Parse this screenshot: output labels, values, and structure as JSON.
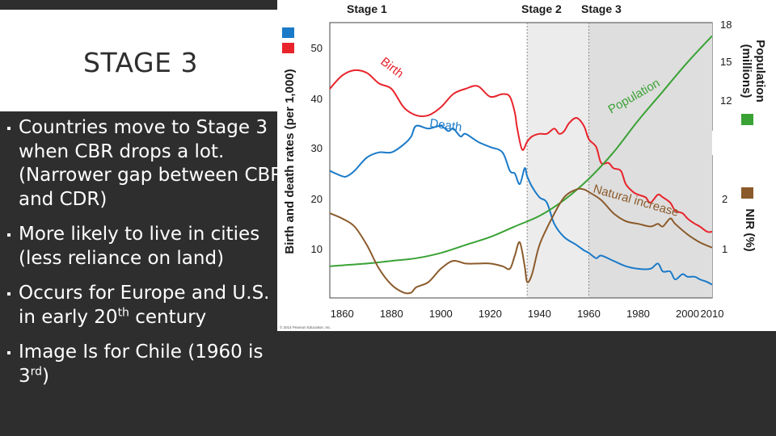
{
  "slide": {
    "title": "STAGE 3",
    "bullets": [
      {
        "main": "Countries move to Stage 3 when CBR drops a lot. (Narrower gap between CBR and CDR)"
      },
      {
        "main": "More likely to live in cities (less reliance on land)"
      },
      {
        "main": "Occurs for Europe and U.S. in early 20",
        "sup": "th",
        "after": " century"
      },
      {
        "main": "Image Is for Chile (1960 is 3",
        "sup": "rd",
        "after": ")"
      }
    ]
  },
  "chart_data": {
    "type": "line",
    "stages": [
      {
        "label": "Stage 1",
        "from": 1855,
        "to": 1935
      },
      {
        "label": "Stage 2",
        "from": 1935,
        "to": 1960
      },
      {
        "label": "Stage 3",
        "from": 1960,
        "to": 2010
      }
    ],
    "x_ticks": [
      "1860",
      "1880",
      "1900",
      "1920",
      "1940",
      "1960",
      "1980",
      "2000",
      "2010"
    ],
    "xlim": [
      1855,
      2010
    ],
    "y_left": {
      "label": "Birth and death rates (per 1,000)",
      "ticks": [
        "10",
        "20",
        "30",
        "40",
        "50"
      ],
      "ylim": [
        3,
        55
      ]
    },
    "y_right_top": {
      "label": "Population (millions)",
      "ticks": [
        "12",
        "15",
        "18"
      ]
    },
    "y_right_bottom": {
      "label": "NIR (%)",
      "ticks": [
        "1",
        "2"
      ]
    },
    "legend_colors": {
      "death": "#1a7ac8",
      "birth": "#e8242b",
      "population": "#3aa235",
      "nir": "#8b5a2b"
    },
    "series": [
      {
        "name": "Birth",
        "color": "#e8242b",
        "x": [
          1855,
          1860,
          1865,
          1870,
          1875,
          1880,
          1885,
          1890,
          1895,
          1900,
          1905,
          1910,
          1915,
          1920,
          1925,
          1928,
          1930,
          1931,
          1933,
          1935,
          1937,
          1940,
          1943,
          1946,
          1948,
          1950,
          1952,
          1955,
          1958,
          1960,
          1963,
          1965,
          1968,
          1970,
          1973,
          1975,
          1978,
          1980,
          1983,
          1985,
          1988,
          1990,
          1993,
          1995,
          1998,
          2000,
          2003,
          2005,
          2008,
          2010
        ],
        "values": [
          42.5,
          45,
          46,
          45.5,
          43.5,
          42.5,
          39,
          37.5,
          37.5,
          39,
          41.5,
          42.5,
          43,
          41,
          41.5,
          41,
          38,
          35,
          31,
          32.5,
          33.5,
          34,
          34,
          35,
          34,
          34.5,
          36,
          37,
          35.5,
          33,
          31.5,
          28.5,
          28.5,
          27.5,
          27,
          24.5,
          23,
          22.5,
          22,
          21,
          22.5,
          22,
          21,
          19.5,
          19,
          18,
          17,
          16.5,
          15.5,
          15.5
        ]
      },
      {
        "name": "Death",
        "color": "#1a7ac8",
        "x": [
          1855,
          1860,
          1862,
          1865,
          1870,
          1875,
          1880,
          1885,
          1888,
          1890,
          1895,
          1900,
          1903,
          1905,
          1908,
          1910,
          1915,
          1920,
          1925,
          1928,
          1930,
          1932,
          1934,
          1935,
          1937,
          1940,
          1943,
          1946,
          1950,
          1955,
          1958,
          1960,
          1963,
          1965,
          1970,
          1975,
          1980,
          1985,
          1988,
          1990,
          1993,
          1995,
          1998,
          2000,
          2003,
          2005,
          2008,
          2010
        ],
        "values": [
          27,
          26,
          26,
          27,
          29.5,
          30.5,
          30.5,
          32,
          33.5,
          35.5,
          35,
          35.5,
          34.5,
          35,
          33.5,
          34,
          32.5,
          31.5,
          30.5,
          27,
          26.5,
          24.5,
          27.5,
          26,
          24,
          22,
          21,
          17,
          14.5,
          13,
          12,
          11.5,
          10.5,
          11,
          10,
          9,
          8.5,
          8.5,
          9.5,
          8,
          8,
          6.5,
          7.5,
          7,
          7,
          6.5,
          6,
          5.5
        ]
      },
      {
        "name": "Population",
        "color": "#3aa235",
        "x": [
          1855,
          1870,
          1880,
          1890,
          1900,
          1910,
          1920,
          1930,
          1940,
          1950,
          1960,
          1970,
          1980,
          1990,
          2000,
          2010
        ],
        "values": [
          9,
          9.5,
          10,
          10.5,
          11.5,
          13,
          14.5,
          16.5,
          18.5,
          21.5,
          25.5,
          30.5,
          36.5,
          42,
          47.5,
          52.5
        ]
      },
      {
        "name": "Natural increase",
        "color": "#8b5a2b",
        "x": [
          1855,
          1860,
          1865,
          1870,
          1875,
          1880,
          1885,
          1888,
          1890,
          1895,
          1900,
          1905,
          1910,
          1915,
          1920,
          1925,
          1928,
          1930,
          1932,
          1934,
          1935,
          1937,
          1940,
          1945,
          1950,
          1955,
          1958,
          1960,
          1965,
          1970,
          1975,
          1980,
          1985,
          1988,
          1990,
          1993,
          1995,
          2000,
          2005,
          2010
        ],
        "values": [
          19,
          18,
          16.5,
          13,
          8.5,
          5.5,
          4,
          4,
          5,
          6,
          8.5,
          10,
          9.5,
          9.5,
          9.5,
          9,
          8.5,
          11,
          13.5,
          9,
          6,
          7.5,
          13,
          18,
          22,
          23.5,
          23.5,
          23,
          21.5,
          19,
          17.5,
          17,
          16.5,
          17,
          16.5,
          18,
          17,
          15,
          13.5,
          12.5
        ]
      }
    ],
    "curve_labels": {
      "birth": "Birth",
      "death": "Death",
      "population": "Population",
      "nir": "Natural increase"
    },
    "copyright": "© 2014 Pearson Education, Inc."
  }
}
